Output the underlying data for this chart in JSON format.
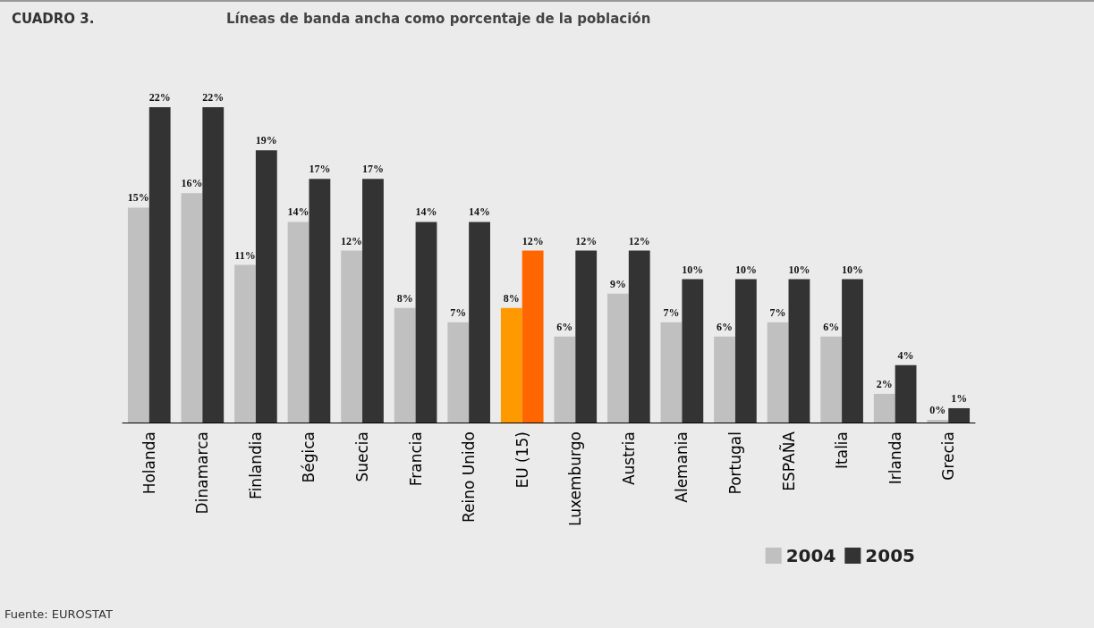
{
  "chart_data": {
    "type": "bar",
    "title": "CUADRO 3.",
    "subtitle": "Líneas de banda ancha como porcentaje de la población",
    "categories": [
      "Holanda",
      "Dinamarca",
      "Finlandia",
      "Bégica",
      "Suecia",
      "Francia",
      "Reino Unido",
      "EU (15)",
      "Luxemburgo",
      "Austria",
      "Alemania",
      "Portugal",
      "ESPAÑA",
      "Italia",
      "Irlanda",
      "Grecia"
    ],
    "series": [
      {
        "name": "2004",
        "color": "#c0c0c0",
        "colors": [
          "#c0c0c0",
          "#c0c0c0",
          "#c0c0c0",
          "#c0c0c0",
          "#c0c0c0",
          "#c0c0c0",
          "#c0c0c0",
          "#ff9900",
          "#c0c0c0",
          "#c0c0c0",
          "#c0c0c0",
          "#c0c0c0",
          "#c0c0c0",
          "#c0c0c0",
          "#c0c0c0",
          "#c0c0c0"
        ],
        "values": [
          15,
          16,
          11,
          14,
          12,
          8,
          7,
          8,
          6,
          9,
          7,
          6,
          7,
          6,
          2,
          0
        ],
        "value_labels": [
          "15%",
          "16%",
          "11%",
          "14%",
          "12%",
          "8%",
          "7%",
          "8%",
          "6%",
          "9%",
          "7%",
          "6%",
          "7%",
          "6%",
          "2%",
          "0%"
        ]
      },
      {
        "name": "2005",
        "color": "#333333",
        "colors": [
          "#333333",
          "#333333",
          "#333333",
          "#333333",
          "#333333",
          "#333333",
          "#333333",
          "#ff6600",
          "#333333",
          "#333333",
          "#333333",
          "#333333",
          "#333333",
          "#333333",
          "#333333",
          "#333333"
        ],
        "values": [
          22,
          22,
          19,
          17,
          17,
          14,
          14,
          12,
          12,
          12,
          10,
          10,
          10,
          10,
          4,
          1
        ],
        "value_labels": [
          "22%",
          "22%",
          "19%",
          "17%",
          "17%",
          "14%",
          "14%",
          "12%",
          "12%",
          "12%",
          "10%",
          "10%",
          "10%",
          "10%",
          "4%",
          "1%"
        ]
      }
    ],
    "legend": "bottom right",
    "grid": false,
    "annotations": [
      "Fuente: EUROSTAT"
    ]
  }
}
